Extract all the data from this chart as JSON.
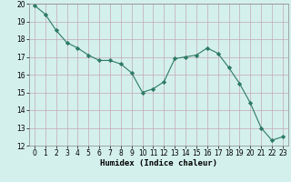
{
  "x": [
    0,
    1,
    2,
    3,
    4,
    5,
    6,
    7,
    8,
    9,
    10,
    11,
    12,
    13,
    14,
    15,
    16,
    17,
    18,
    19,
    20,
    21,
    22,
    23
  ],
  "y": [
    19.9,
    19.4,
    18.5,
    17.8,
    17.5,
    17.1,
    16.8,
    16.8,
    16.6,
    16.1,
    15.0,
    15.2,
    15.6,
    16.9,
    17.0,
    17.1,
    17.5,
    17.2,
    16.4,
    15.5,
    14.4,
    13.0,
    12.3,
    12.5
  ],
  "line_color": "#2d7a62",
  "marker": "D",
  "marker_size": 2.2,
  "bg_color": "#d4f0ec",
  "grid_color": "#c4a8b8",
  "xlabel": "Humidex (Indice chaleur)",
  "xlim": [
    -0.5,
    23.5
  ],
  "ylim": [
    12,
    20
  ],
  "yticks": [
    12,
    13,
    14,
    15,
    16,
    17,
    18,
    19,
    20
  ],
  "xticks": [
    0,
    1,
    2,
    3,
    4,
    5,
    6,
    7,
    8,
    9,
    10,
    11,
    12,
    13,
    14,
    15,
    16,
    17,
    18,
    19,
    20,
    21,
    22,
    23
  ],
  "xlabel_fontsize": 6.5,
  "tick_fontsize": 5.5
}
